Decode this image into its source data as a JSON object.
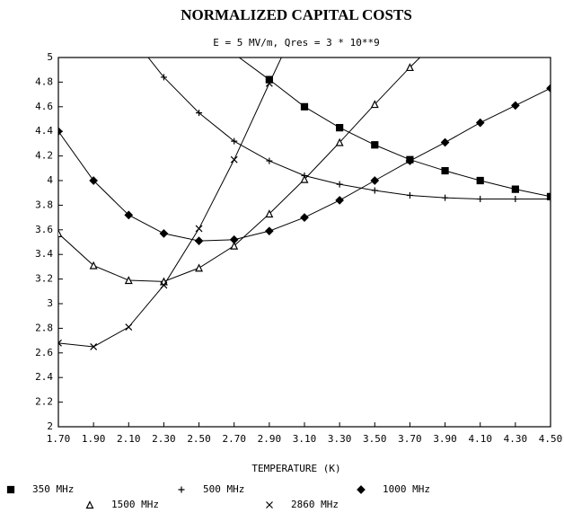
{
  "chart_data": {
    "type": "line",
    "title": "NORMALIZED CAPITAL COSTS",
    "subtitle": "E = 5 MV/m, Qres = 3 * 10**9",
    "x_label": "TEMPERATURE (K)",
    "x": [
      1.7,
      1.9,
      2.1,
      2.3,
      2.5,
      2.7,
      2.9,
      3.1,
      3.3,
      3.5,
      3.7,
      3.9,
      4.1,
      4.3,
      4.5
    ],
    "xlim": [
      1.7,
      4.5
    ],
    "xticks": [
      {
        "value": 1.7,
        "label": "1.70"
      },
      {
        "value": 1.9,
        "label": "1.90"
      },
      {
        "value": 2.1,
        "label": "2.10"
      },
      {
        "value": 2.3,
        "label": "2.30"
      },
      {
        "value": 2.5,
        "label": "2.50"
      },
      {
        "value": 2.7,
        "label": "2.70"
      },
      {
        "value": 2.9,
        "label": "2.90"
      },
      {
        "value": 3.1,
        "label": "3.10"
      },
      {
        "value": 3.3,
        "label": "3.30"
      },
      {
        "value": 3.5,
        "label": "3.50"
      },
      {
        "value": 3.7,
        "label": "3.70"
      },
      {
        "value": 3.9,
        "label": "3.90"
      },
      {
        "value": 4.1,
        "label": "4.10"
      },
      {
        "value": 4.3,
        "label": "4.30"
      },
      {
        "value": 4.5,
        "label": "4.50"
      }
    ],
    "ylim": [
      2,
      5
    ],
    "yticks": [
      2,
      2.2,
      2.4,
      2.6,
      2.8,
      3,
      3.2,
      3.4,
      3.6,
      3.8,
      4,
      4.2,
      4.4,
      4.6,
      4.8,
      5
    ],
    "grid": false,
    "series": [
      {
        "name": "350 MHz",
        "color": "#000000",
        "marker": "square",
        "values": [
          null,
          null,
          null,
          null,
          null,
          5.03,
          4.82,
          4.6,
          4.43,
          4.29,
          4.17,
          4.08,
          4.0,
          3.93,
          3.87
        ]
      },
      {
        "name": "500 MHz",
        "color": "#000000",
        "marker": "plus",
        "values": [
          null,
          null,
          5.2,
          4.84,
          4.55,
          4.32,
          4.16,
          4.04,
          3.97,
          3.92,
          3.88,
          3.86,
          3.85,
          3.85,
          3.85
        ]
      },
      {
        "name": "1000 MHz",
        "color": "#000000",
        "marker": "diamond",
        "values": [
          4.4,
          4.0,
          3.72,
          3.57,
          3.51,
          3.52,
          3.59,
          3.7,
          3.84,
          4.0,
          4.16,
          4.31,
          4.47,
          4.61,
          4.75
        ]
      },
      {
        "name": "1500 MHz",
        "color": "#000000",
        "marker": "triangle",
        "values": [
          3.57,
          3.31,
          3.19,
          3.18,
          3.29,
          3.47,
          3.73,
          4.01,
          4.31,
          4.62,
          4.92,
          5.2,
          null,
          null,
          null
        ]
      },
      {
        "name": "2860 MHz",
        "color": "#000000",
        "marker": "cross",
        "values": [
          2.68,
          2.65,
          2.81,
          3.15,
          3.61,
          4.17,
          4.79,
          5.4,
          null,
          null,
          null,
          null,
          null,
          null,
          null
        ]
      }
    ]
  }
}
